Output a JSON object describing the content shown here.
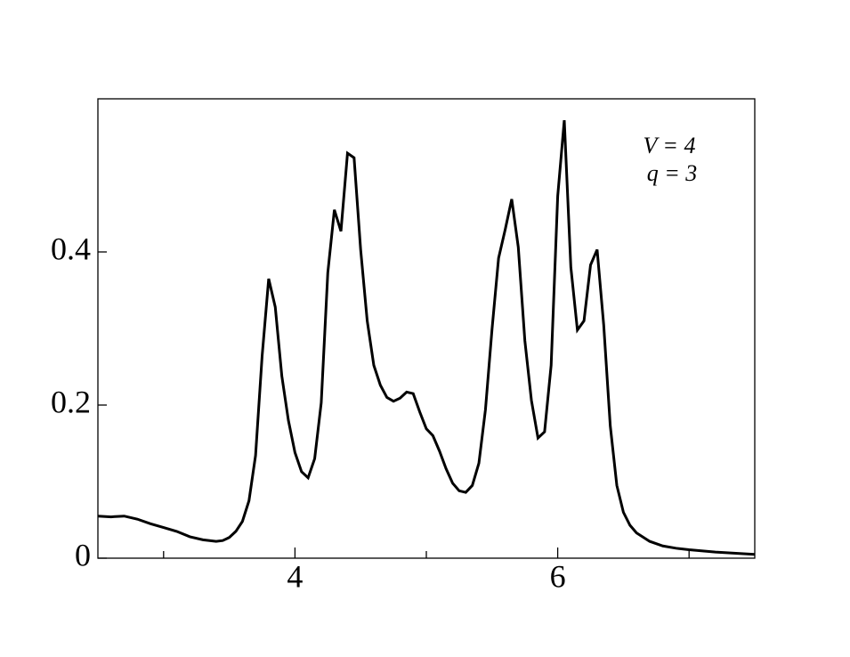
{
  "chart_data": {
    "type": "line",
    "annotations": [
      "V = 4",
      "q = 3"
    ],
    "x": [
      2.5,
      2.6,
      2.7,
      2.8,
      2.9,
      3.0,
      3.1,
      3.2,
      3.3,
      3.4,
      3.45,
      3.5,
      3.55,
      3.6,
      3.65,
      3.7,
      3.75,
      3.8,
      3.85,
      3.9,
      3.95,
      4.0,
      4.05,
      4.1,
      4.15,
      4.2,
      4.25,
      4.3,
      4.35,
      4.4,
      4.45,
      4.5,
      4.55,
      4.6,
      4.65,
      4.7,
      4.75,
      4.8,
      4.85,
      4.9,
      4.95,
      5.0,
      5.05,
      5.1,
      5.15,
      5.2,
      5.25,
      5.3,
      5.35,
      5.4,
      5.45,
      5.5,
      5.55,
      5.6,
      5.65,
      5.7,
      5.75,
      5.8,
      5.85,
      5.9,
      5.95,
      6.0,
      6.05,
      6.1,
      6.15,
      6.2,
      6.25,
      6.3,
      6.35,
      6.4,
      6.45,
      6.5,
      6.55,
      6.6,
      6.7,
      6.8,
      6.9,
      7.0,
      7.2,
      7.4,
      7.5
    ],
    "series": [
      {
        "color": "#000000",
        "values": [
          0.055,
          0.054,
          0.055,
          0.051,
          0.045,
          0.04,
          0.035,
          0.028,
          0.024,
          0.022,
          0.023,
          0.027,
          0.035,
          0.048,
          0.075,
          0.134,
          0.264,
          0.365,
          0.328,
          0.238,
          0.18,
          0.138,
          0.113,
          0.105,
          0.13,
          0.203,
          0.373,
          0.455,
          0.427,
          0.529,
          0.523,
          0.403,
          0.31,
          0.252,
          0.226,
          0.21,
          0.205,
          0.209,
          0.217,
          0.215,
          0.191,
          0.169,
          0.16,
          0.14,
          0.117,
          0.098,
          0.088,
          0.086,
          0.095,
          0.124,
          0.194,
          0.299,
          0.392,
          0.429,
          0.469,
          0.406,
          0.284,
          0.206,
          0.157,
          0.165,
          0.252,
          0.473,
          0.572,
          0.38,
          0.298,
          0.31,
          0.383,
          0.403,
          0.305,
          0.173,
          0.095,
          0.06,
          0.043,
          0.033,
          0.022,
          0.016,
          0.013,
          0.011,
          0.008,
          0.006,
          0.005
        ]
      }
    ],
    "xlim": [
      2.5,
      7.5
    ],
    "xticks": [
      4,
      6
    ],
    "xminorticks": [
      3,
      5,
      7
    ],
    "ylim": [
      0,
      0.6
    ],
    "yticks": [
      0,
      0.2,
      0.4
    ]
  }
}
